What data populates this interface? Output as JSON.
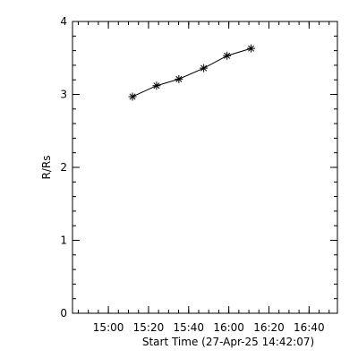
{
  "chart_data": {
    "type": "line",
    "xlabel": "Start Time (27-Apr-25 14:42:07)",
    "ylabel": "R/Rs",
    "x": [
      29.9,
      41.9,
      53.0,
      65.4,
      77.0,
      89.0
    ],
    "series": [
      {
        "values": [
          2.97,
          3.12,
          3.21,
          3.36,
          3.53,
          3.63
        ],
        "color": "#000000"
      }
    ],
    "xlim": [
      0,
      132
    ],
    "xticks": [
      {
        "value": 17.88,
        "label": "15:00"
      },
      {
        "value": 37.88,
        "label": "15:20"
      },
      {
        "value": 57.88,
        "label": "15:40"
      },
      {
        "value": 77.88,
        "label": "16:00"
      },
      {
        "value": 97.88,
        "label": "16:20"
      },
      {
        "value": 117.88,
        "label": "16:40"
      }
    ],
    "ylim": [
      0,
      4
    ],
    "yticks": [
      0,
      1,
      2,
      3,
      4
    ],
    "xminor": 4,
    "yminor": 5
  }
}
